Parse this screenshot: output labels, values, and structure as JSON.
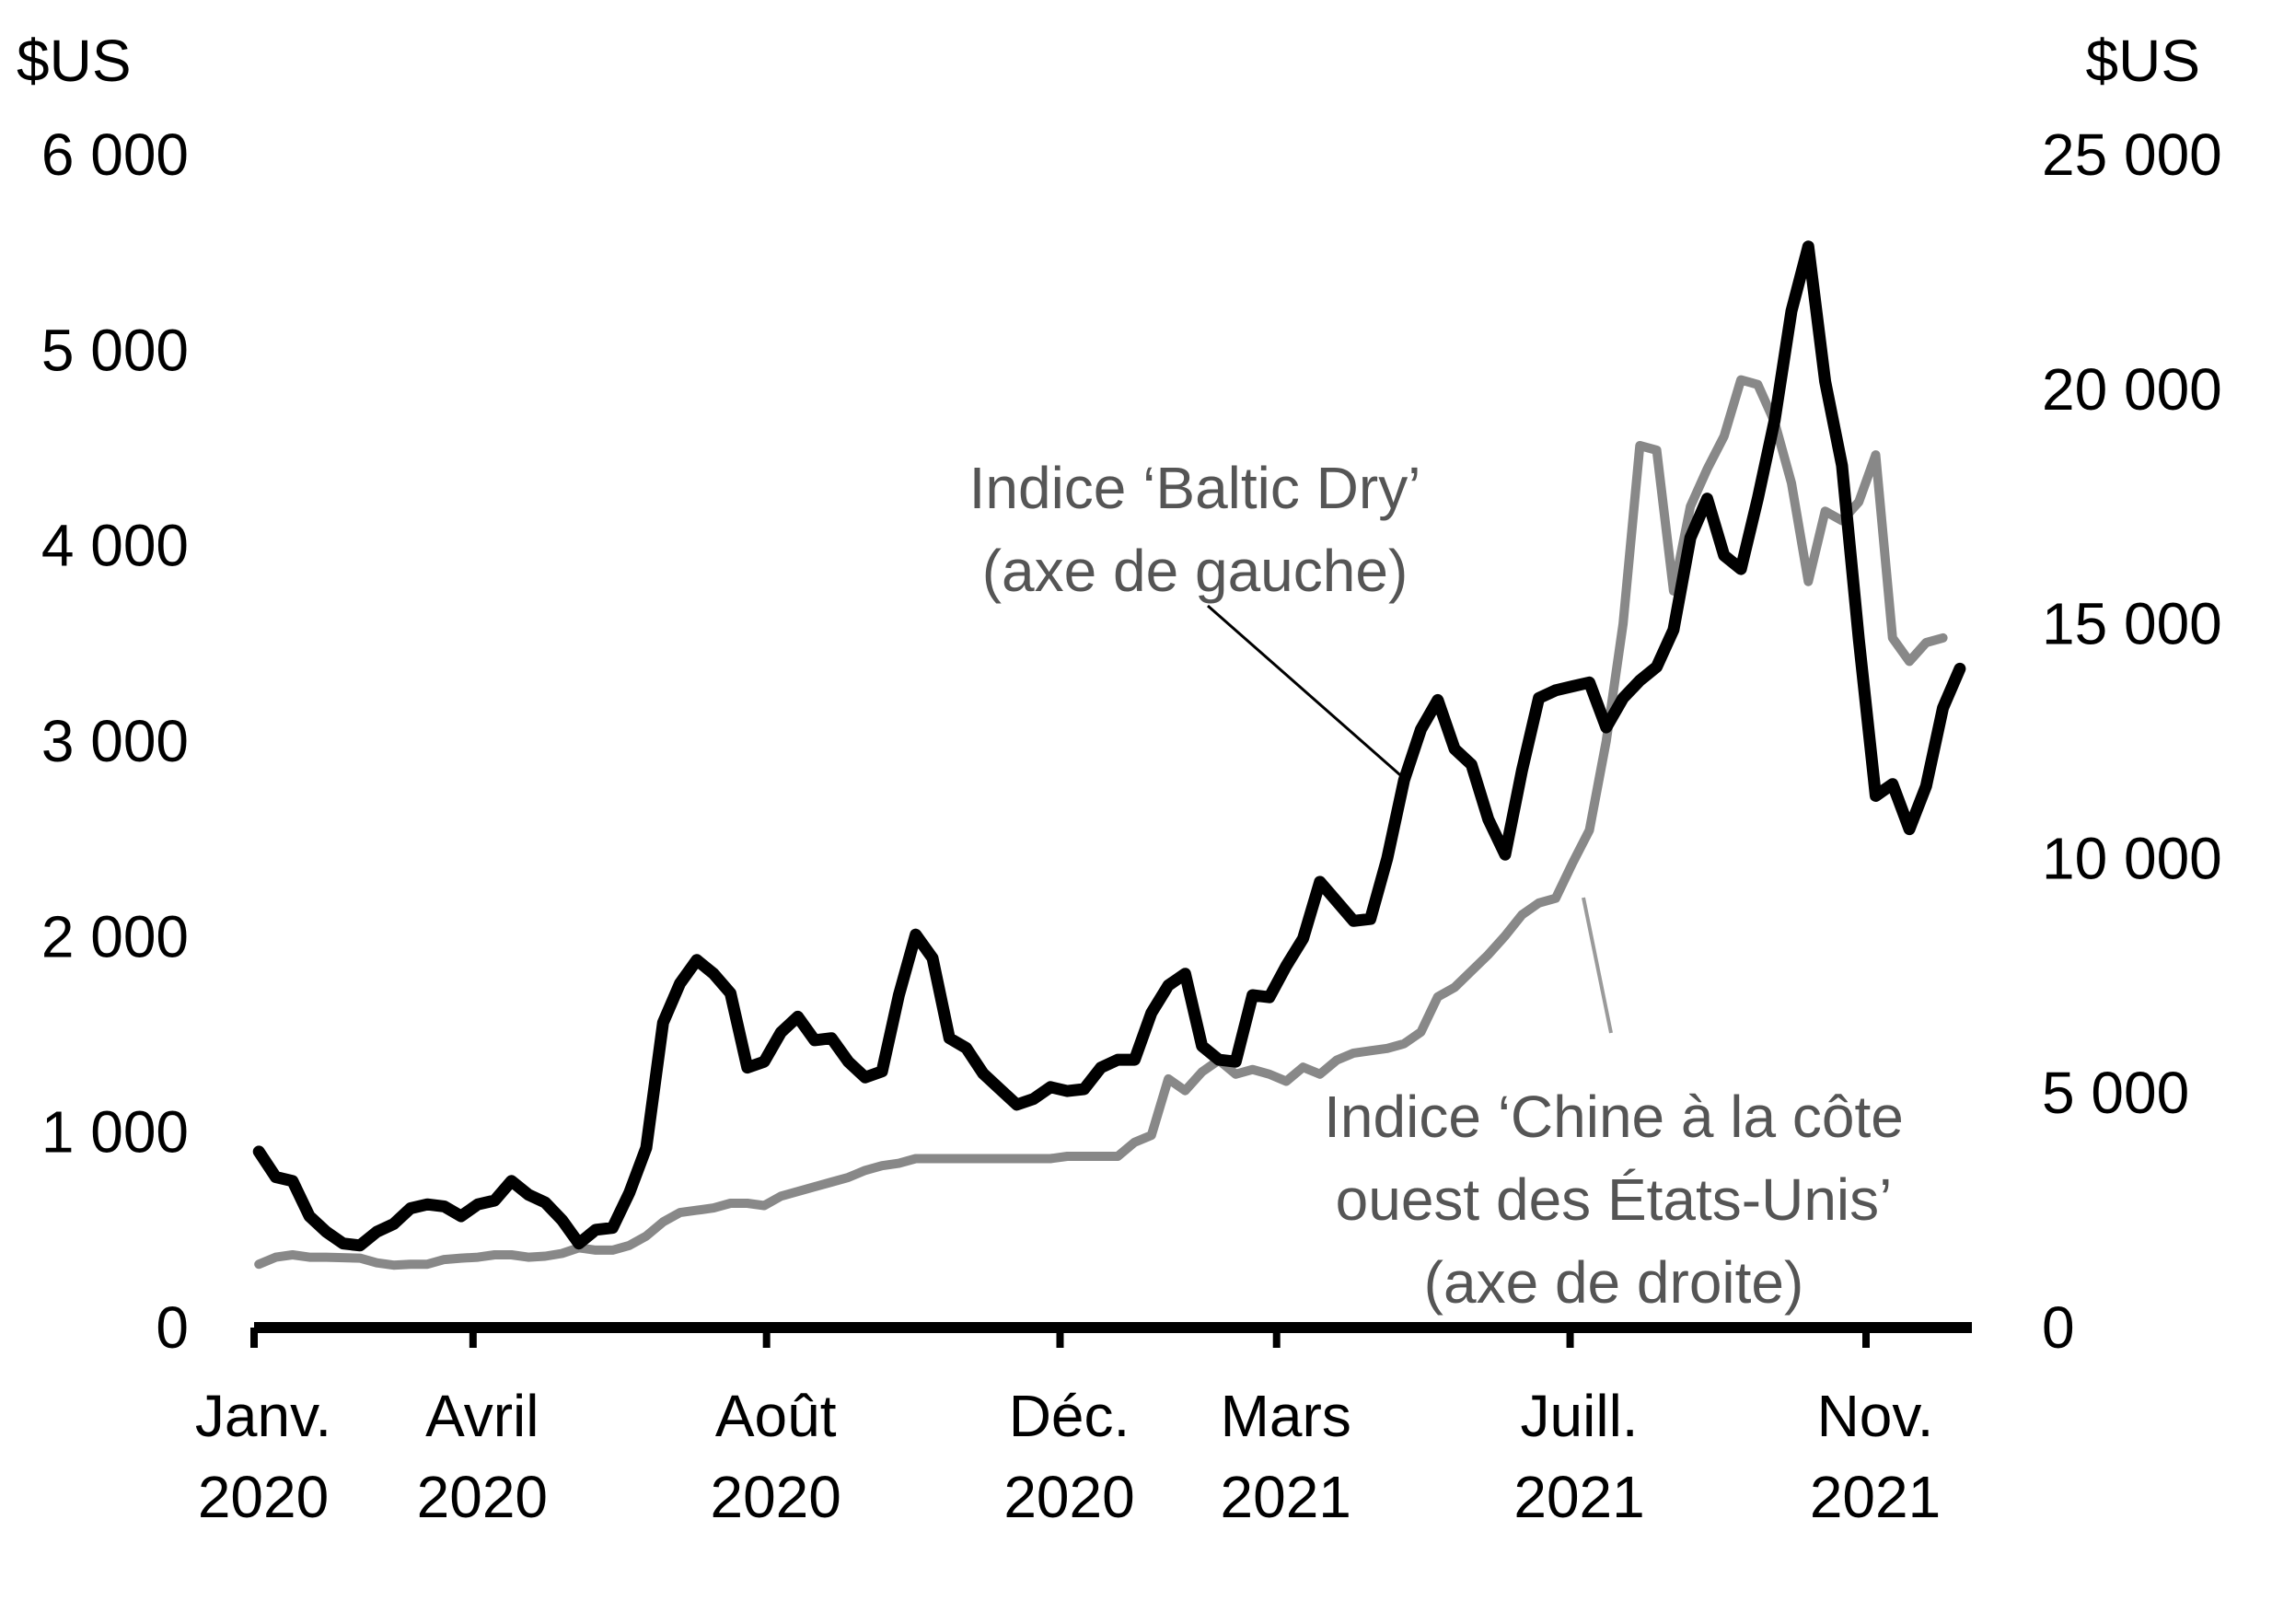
{
  "chart_data": {
    "type": "line",
    "x_domain": [
      "2020-01-01",
      "2021-12-15"
    ],
    "left_axis": {
      "unit": "$US",
      "ylim": [
        0,
        6000
      ],
      "ticks": [
        0,
        1000,
        2000,
        3000,
        4000,
        5000,
        6000
      ],
      "tick_labels": [
        "0",
        "1 000",
        "2 000",
        "3 000",
        "4 000",
        "5 000",
        "6 000"
      ]
    },
    "right_axis": {
      "unit": "$US",
      "ylim": [
        0,
        25000
      ],
      "ticks": [
        0,
        5000,
        10000,
        15000,
        20000,
        25000
      ],
      "tick_labels": [
        "0",
        "5 000",
        "10 000",
        "15 000",
        "20 000",
        "25 000"
      ]
    },
    "x_ticks": [
      {
        "date": "2020-01-01",
        "line1": "Janv.",
        "line2": "2020"
      },
      {
        "date": "2020-04-01",
        "line1": "Avril",
        "line2": "2020"
      },
      {
        "date": "2020-08-01",
        "line1": "Août",
        "line2": "2020"
      },
      {
        "date": "2020-12-01",
        "line1": "Déc.",
        "line2": "2020"
      },
      {
        "date": "2021-03-01",
        "line1": "Mars",
        "line2": "2021"
      },
      {
        "date": "2021-07-01",
        "line1": "Juill.",
        "line2": "2021"
      },
      {
        "date": "2021-11-01",
        "line1": "Nov.",
        "line2": "2021"
      }
    ],
    "series": [
      {
        "axis": "left",
        "color": "#000000",
        "annotation": [
          "Indice ‘Baltic Dry’",
          "(axe de gauche)"
        ],
        "annotation_color": "#555555",
        "points": [
          [
            "2020-01-03",
            900
          ],
          [
            "2020-01-10",
            770
          ],
          [
            "2020-01-17",
            750
          ],
          [
            "2020-01-24",
            570
          ],
          [
            "2020-01-31",
            490
          ],
          [
            "2020-02-07",
            430
          ],
          [
            "2020-02-14",
            420
          ],
          [
            "2020-02-21",
            490
          ],
          [
            "2020-02-28",
            530
          ],
          [
            "2020-03-06",
            610
          ],
          [
            "2020-03-13",
            630
          ],
          [
            "2020-03-20",
            620
          ],
          [
            "2020-03-27",
            570
          ],
          [
            "2020-04-03",
            630
          ],
          [
            "2020-04-10",
            650
          ],
          [
            "2020-04-17",
            750
          ],
          [
            "2020-04-24",
            680
          ],
          [
            "2020-05-01",
            640
          ],
          [
            "2020-05-08",
            550
          ],
          [
            "2020-05-15",
            430
          ],
          [
            "2020-05-22",
            500
          ],
          [
            "2020-05-29",
            510
          ],
          [
            "2020-06-05",
            690
          ],
          [
            "2020-06-12",
            920
          ],
          [
            "2020-06-19",
            1560
          ],
          [
            "2020-06-26",
            1760
          ],
          [
            "2020-07-03",
            1880
          ],
          [
            "2020-07-10",
            1810
          ],
          [
            "2020-07-17",
            1710
          ],
          [
            "2020-07-24",
            1330
          ],
          [
            "2020-07-31",
            1360
          ],
          [
            "2020-08-07",
            1510
          ],
          [
            "2020-08-14",
            1590
          ],
          [
            "2020-08-21",
            1470
          ],
          [
            "2020-08-28",
            1480
          ],
          [
            "2020-09-04",
            1360
          ],
          [
            "2020-09-11",
            1280
          ],
          [
            "2020-09-18",
            1310
          ],
          [
            "2020-09-25",
            1700
          ],
          [
            "2020-10-02",
            2010
          ],
          [
            "2020-10-09",
            1890
          ],
          [
            "2020-10-16",
            1480
          ],
          [
            "2020-10-23",
            1430
          ],
          [
            "2020-10-30",
            1300
          ],
          [
            "2020-11-06",
            1220
          ],
          [
            "2020-11-13",
            1140
          ],
          [
            "2020-11-20",
            1170
          ],
          [
            "2020-11-27",
            1230
          ],
          [
            "2020-12-04",
            1210
          ],
          [
            "2020-12-11",
            1220
          ],
          [
            "2020-12-18",
            1330
          ],
          [
            "2020-12-25",
            1370
          ],
          [
            "2021-01-01",
            1370
          ],
          [
            "2021-01-08",
            1610
          ],
          [
            "2021-01-15",
            1750
          ],
          [
            "2021-01-22",
            1810
          ],
          [
            "2021-01-29",
            1440
          ],
          [
            "2021-02-05",
            1370
          ],
          [
            "2021-02-12",
            1360
          ],
          [
            "2021-02-19",
            1700
          ],
          [
            "2021-02-26",
            1690
          ],
          [
            "2021-03-05",
            1850
          ],
          [
            "2021-03-12",
            1990
          ],
          [
            "2021-03-19",
            2280
          ],
          [
            "2021-03-26",
            2180
          ],
          [
            "2021-04-02",
            2080
          ],
          [
            "2021-04-09",
            2090
          ],
          [
            "2021-04-16",
            2400
          ],
          [
            "2021-04-23",
            2800
          ],
          [
            "2021-04-30",
            3060
          ],
          [
            "2021-05-07",
            3210
          ],
          [
            "2021-05-14",
            2960
          ],
          [
            "2021-05-21",
            2880
          ],
          [
            "2021-05-28",
            2600
          ],
          [
            "2021-06-04",
            2420
          ],
          [
            "2021-06-11",
            2850
          ],
          [
            "2021-06-18",
            3220
          ],
          [
            "2021-06-25",
            3260
          ],
          [
            "2021-07-02",
            3280
          ],
          [
            "2021-07-09",
            3300
          ],
          [
            "2021-07-16",
            3070
          ],
          [
            "2021-07-23",
            3220
          ],
          [
            "2021-07-30",
            3310
          ],
          [
            "2021-08-06",
            3380
          ],
          [
            "2021-08-13",
            3570
          ],
          [
            "2021-08-20",
            4040
          ],
          [
            "2021-08-27",
            4240
          ],
          [
            "2021-09-03",
            3950
          ],
          [
            "2021-09-10",
            3880
          ],
          [
            "2021-09-17",
            4240
          ],
          [
            "2021-09-24",
            4640
          ],
          [
            "2021-10-01",
            5200
          ],
          [
            "2021-10-08",
            5530
          ],
          [
            "2021-10-15",
            4840
          ],
          [
            "2021-10-22",
            4410
          ],
          [
            "2021-10-29",
            3520
          ],
          [
            "2021-11-05",
            2720
          ],
          [
            "2021-11-12",
            2780
          ],
          [
            "2021-11-19",
            2550
          ],
          [
            "2021-11-26",
            2770
          ],
          [
            "2021-12-03",
            3170
          ],
          [
            "2021-12-10",
            3370
          ]
        ]
      },
      {
        "axis": "right",
        "color": "#888888",
        "annotation": [
          "Indice ‘Chine à la côte",
          "ouest des États-Unis’",
          "(axe de droite)"
        ],
        "annotation_color": "#555555",
        "points": [
          [
            "2020-01-03",
            1350
          ],
          [
            "2020-01-10",
            1500
          ],
          [
            "2020-01-17",
            1550
          ],
          [
            "2020-01-24",
            1500
          ],
          [
            "2020-01-31",
            1500
          ],
          [
            "2020-02-14",
            1480
          ],
          [
            "2020-02-21",
            1380
          ],
          [
            "2020-02-28",
            1330
          ],
          [
            "2020-03-06",
            1350
          ],
          [
            "2020-03-13",
            1350
          ],
          [
            "2020-03-20",
            1450
          ],
          [
            "2020-03-27",
            1480
          ],
          [
            "2020-04-03",
            1500
          ],
          [
            "2020-04-10",
            1550
          ],
          [
            "2020-04-17",
            1550
          ],
          [
            "2020-04-24",
            1500
          ],
          [
            "2020-05-01",
            1520
          ],
          [
            "2020-05-08",
            1580
          ],
          [
            "2020-05-15",
            1700
          ],
          [
            "2020-05-22",
            1650
          ],
          [
            "2020-05-29",
            1650
          ],
          [
            "2020-06-05",
            1750
          ],
          [
            "2020-06-12",
            1950
          ],
          [
            "2020-06-19",
            2250
          ],
          [
            "2020-06-26",
            2450
          ],
          [
            "2020-07-03",
            2500
          ],
          [
            "2020-07-10",
            2550
          ],
          [
            "2020-07-17",
            2650
          ],
          [
            "2020-07-24",
            2650
          ],
          [
            "2020-07-31",
            2600
          ],
          [
            "2020-08-07",
            2800
          ],
          [
            "2020-08-14",
            2900
          ],
          [
            "2020-08-21",
            3000
          ],
          [
            "2020-08-28",
            3100
          ],
          [
            "2020-09-04",
            3200
          ],
          [
            "2020-09-11",
            3350
          ],
          [
            "2020-09-18",
            3450
          ],
          [
            "2020-09-25",
            3500
          ],
          [
            "2020-10-02",
            3600
          ],
          [
            "2020-10-30",
            3600
          ],
          [
            "2020-11-06",
            3600
          ],
          [
            "2020-11-27",
            3600
          ],
          [
            "2020-12-04",
            3650
          ],
          [
            "2020-12-25",
            3650
          ],
          [
            "2021-01-01",
            3950
          ],
          [
            "2021-01-08",
            4100
          ],
          [
            "2021-01-15",
            5300
          ],
          [
            "2021-01-22",
            5050
          ],
          [
            "2021-01-29",
            5450
          ],
          [
            "2021-02-05",
            5700
          ],
          [
            "2021-02-12",
            5400
          ],
          [
            "2021-02-19",
            5500
          ],
          [
            "2021-02-26",
            5400
          ],
          [
            "2021-03-05",
            5250
          ],
          [
            "2021-03-12",
            5550
          ],
          [
            "2021-03-19",
            5400
          ],
          [
            "2021-03-26",
            5700
          ],
          [
            "2021-04-02",
            5850
          ],
          [
            "2021-04-09",
            5900
          ],
          [
            "2021-04-16",
            5950
          ],
          [
            "2021-04-23",
            6050
          ],
          [
            "2021-04-30",
            6300
          ],
          [
            "2021-05-07",
            7050
          ],
          [
            "2021-05-14",
            7250
          ],
          [
            "2021-05-21",
            7600
          ],
          [
            "2021-05-28",
            7950
          ],
          [
            "2021-06-04",
            8350
          ],
          [
            "2021-06-11",
            8800
          ],
          [
            "2021-06-18",
            9050
          ],
          [
            "2021-06-25",
            9150
          ],
          [
            "2021-07-02",
            9900
          ],
          [
            "2021-07-09",
            10600
          ],
          [
            "2021-07-16",
            12500
          ],
          [
            "2021-07-23",
            15000
          ],
          [
            "2021-07-30",
            18800
          ],
          [
            "2021-08-06",
            18700
          ],
          [
            "2021-08-13",
            15700
          ],
          [
            "2021-08-20",
            17500
          ],
          [
            "2021-08-27",
            18300
          ],
          [
            "2021-09-03",
            19000
          ],
          [
            "2021-09-10",
            20200
          ],
          [
            "2021-09-17",
            20100
          ],
          [
            "2021-09-24",
            19300
          ],
          [
            "2021-10-01",
            18000
          ],
          [
            "2021-10-08",
            15900
          ],
          [
            "2021-10-15",
            17400
          ],
          [
            "2021-10-22",
            17200
          ],
          [
            "2021-10-29",
            17600
          ],
          [
            "2021-11-05",
            18600
          ],
          [
            "2021-11-12",
            14700
          ],
          [
            "2021-11-19",
            14200
          ],
          [
            "2021-11-26",
            14600
          ],
          [
            "2021-12-03",
            14700
          ]
        ]
      }
    ]
  }
}
